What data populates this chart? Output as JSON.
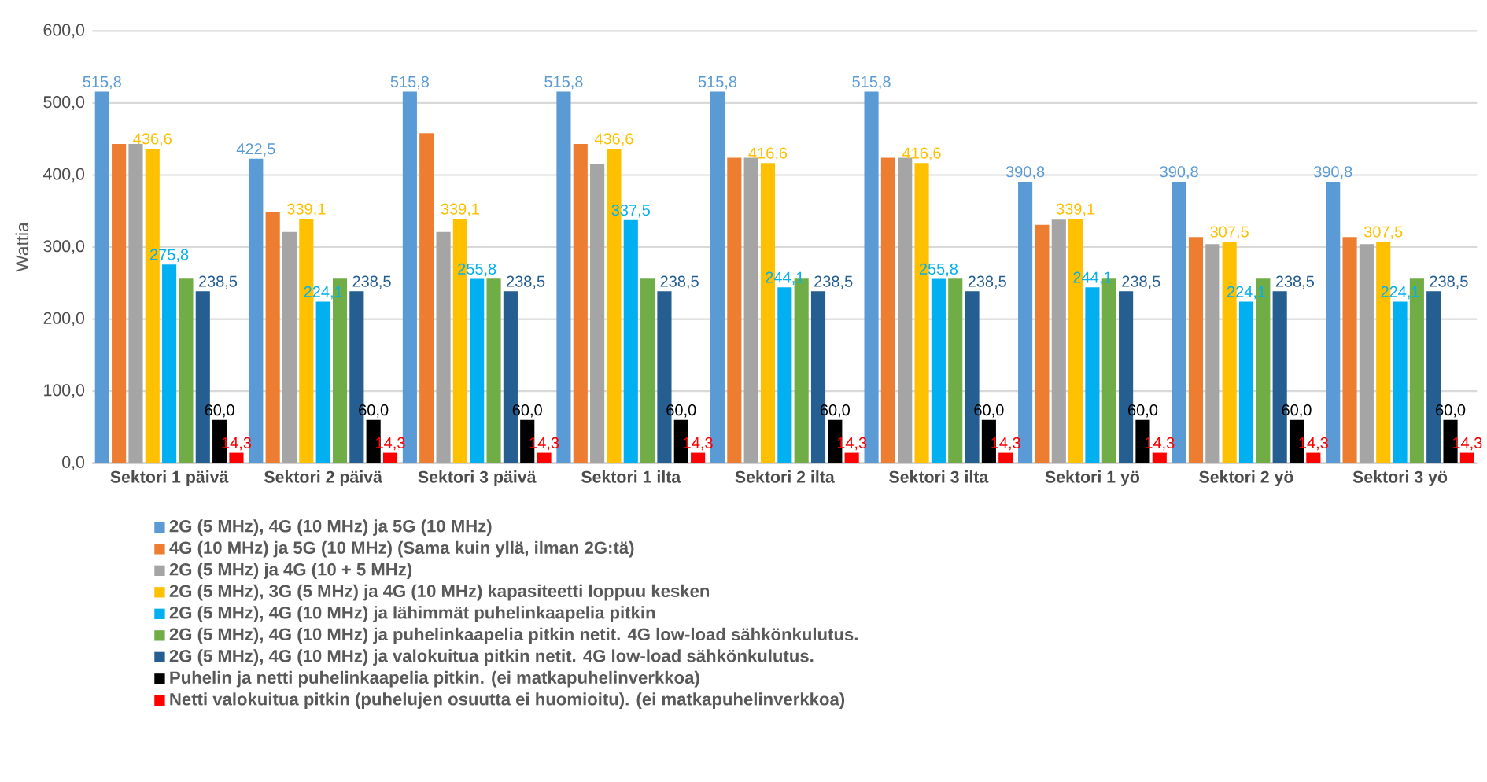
{
  "chart_data": {
    "type": "bar",
    "ylabel": "Wattia",
    "categories": [
      "Sektori 1 päivä",
      "Sektori 2 päivä",
      "Sektori 3 päivä",
      "Sektori 1 ilta",
      "Sektori 2 ilta",
      "Sektori 3 ilta",
      "Sektori 1 yö",
      "Sektori 2 yö",
      "Sektori 3 yö"
    ],
    "series": [
      {
        "name": "2G (5 MHz), 4G (10 MHz) ja 5G (10 MHz)",
        "color": "#5b9bd5",
        "values": [
          515.8,
          422.5,
          515.8,
          515.8,
          515.8,
          515.8,
          390.8,
          390.8,
          390.8
        ],
        "value_labels": [
          "515,8",
          "422,5",
          "515,8",
          "515,8",
          "515,8",
          "515,8",
          "390,8",
          "390,8",
          "390,8"
        ]
      },
      {
        "name": "4G (10 MHz) ja 5G (10 MHz) (Sama kuin yllä, ilman 2G:tä)",
        "color": "#ed7d31",
        "values": [
          443,
          348,
          458,
          443,
          424,
          424,
          331,
          314,
          314
        ]
      },
      {
        "name": "2G (5 MHz) ja 4G (10 + 5 MHz)",
        "color": "#a5a5a5",
        "values": [
          443,
          321,
          321,
          415,
          424,
          424,
          338,
          304,
          304
        ]
      },
      {
        "name": "2G  (5 MHz), 3G (5 MHz) ja 4G  (10 MHz) kapasiteetti loppuu kesken",
        "color": "#ffc000",
        "values": [
          436.6,
          339.1,
          339.1,
          436.6,
          416.6,
          416.6,
          339.1,
          307.5,
          307.5
        ],
        "value_labels": [
          "436,6",
          "339,1",
          "339,1",
          "436,6",
          "416,6",
          "416,6",
          "339,1",
          "307,5",
          "307,5"
        ]
      },
      {
        "name": "2G (5 MHz), 4G (10 MHz) ja lähimmät puhelinkaapelia pitkin",
        "color": "#00b0f0",
        "values": [
          275.8,
          224.1,
          255.8,
          337.5,
          244.1,
          255.8,
          244.1,
          224.1,
          224.1
        ],
        "value_labels": [
          "275,8",
          "224,1",
          "255,8",
          "337,5",
          "244,1",
          "255,8",
          "244,1",
          "224,1",
          "224,1"
        ]
      },
      {
        "name": "2G (5 MHz), 4G (10 MHz) ja puhelinkaapelia pitkin netit. 4G low-load sähkönkulutus.",
        "color": "#70ad47",
        "values": [
          256,
          256,
          256,
          256,
          256,
          256,
          256,
          256,
          256
        ]
      },
      {
        "name": "2G (5 MHz), 4G (10 MHz) ja valokuitua pitkin netit. 4G low-load sähkönkulutus.",
        "color": "#255e91",
        "values": [
          238.5,
          238.5,
          238.5,
          238.5,
          238.5,
          238.5,
          238.5,
          238.5,
          238.5
        ],
        "value_labels": [
          "238,5",
          "238,5",
          "238,5",
          "238,5",
          "238,5",
          "238,5",
          "238,5",
          "238,5",
          "238,5"
        ]
      },
      {
        "name": "Puhelin ja netti puhelinkaapelia pitkin. (ei matkapuhelinverkkoa)",
        "color": "#000000",
        "values": [
          60.0,
          60.0,
          60.0,
          60.0,
          60.0,
          60.0,
          60.0,
          60.0,
          60.0
        ],
        "value_labels": [
          "60,0",
          "60,0",
          "60,0",
          "60,0",
          "60,0",
          "60,0",
          "60,0",
          "60,0",
          "60,0"
        ]
      },
      {
        "name": "Netti valokuitua pitkin (puhelujen osuutta ei huomioitu). (ei matkapuhelinverkkoa)",
        "color": "#ff0000",
        "values": [
          14.3,
          14.3,
          14.3,
          14.3,
          14.3,
          14.3,
          14.3,
          14.3,
          14.3
        ],
        "value_labels": [
          "14,3",
          "14,3",
          "14,3",
          "14,3",
          "14,3",
          "14,3",
          "14,3",
          "14,3",
          "14,3"
        ]
      }
    ],
    "ylim": [
      0,
      600
    ],
    "yticks": [
      {
        "value": 0,
        "label": "0,0"
      },
      {
        "value": 100,
        "label": "100,0"
      },
      {
        "value": 200,
        "label": "200,0"
      },
      {
        "value": 300,
        "label": "300,0"
      },
      {
        "value": 400,
        "label": "400,0"
      },
      {
        "value": 500,
        "label": "500,0"
      },
      {
        "value": 600,
        "label": "600,0"
      }
    ],
    "grid": "y",
    "legend": "bottom"
  }
}
